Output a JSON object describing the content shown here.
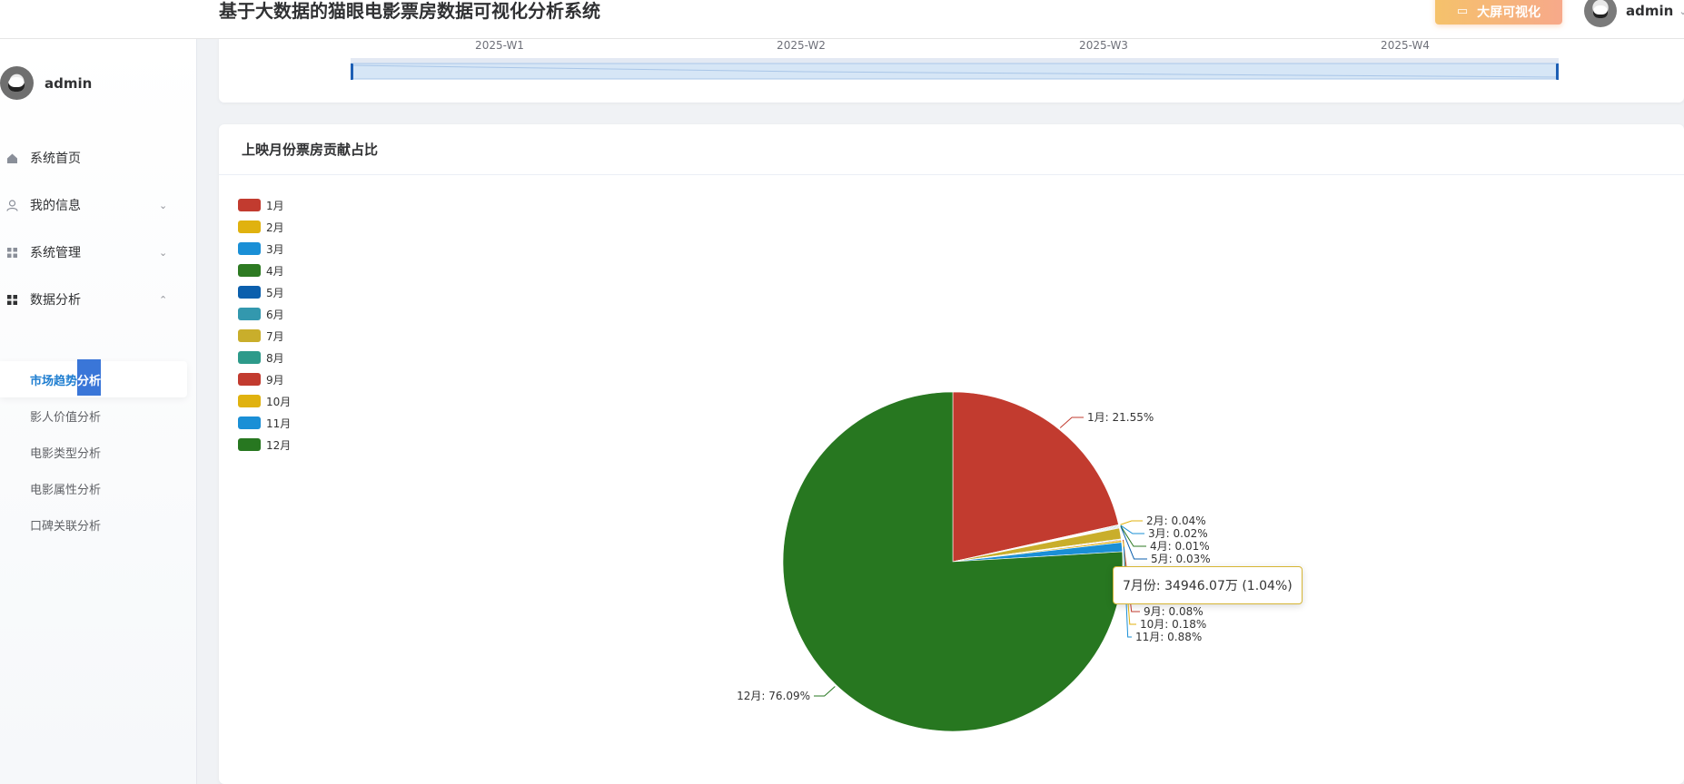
{
  "app": {
    "title": "基于大数据的猫眼电影票房数据可视化分析系统",
    "bigscreen_label": "大屏可视化",
    "user_name": "admin"
  },
  "sidebar": {
    "user_name": "admin",
    "menu": [
      {
        "label": "系统首页",
        "icon": "home-icon"
      },
      {
        "label": "我的信息",
        "icon": "user-icon",
        "arrow": "chevron-down-icon"
      },
      {
        "label": "系统管理",
        "icon": "grid-icon",
        "arrow": "chevron-down-icon"
      },
      {
        "label": "数据分析",
        "icon": "grid-filled-icon",
        "arrow": "chevron-up-icon"
      }
    ],
    "submenu": [
      {
        "label": "市场趋势分析",
        "active": true
      },
      {
        "label": "影人价值分析"
      },
      {
        "label": "电影类型分析"
      },
      {
        "label": "电影属性分析"
      },
      {
        "label": "口碑关联分析"
      }
    ],
    "selection_text": "分析"
  },
  "top_card": {
    "weeks": [
      "2025-W1",
      "2025-W2",
      "2025-W3",
      "2025-W4"
    ]
  },
  "pie_card": {
    "title": "上映月份票房贡献占比",
    "tooltip": "7月份: 34946.07万 (1.04%)"
  },
  "colors": {
    "accent": "#1f7ed0",
    "selection": "#2f6fd6"
  },
  "chart_data": {
    "type": "pie",
    "title": "上映月份票房贡献占比",
    "categories": [
      "1月",
      "2月",
      "3月",
      "4月",
      "5月",
      "6月",
      "7月",
      "8月",
      "9月",
      "10月",
      "11月",
      "12月"
    ],
    "values": [
      21.55,
      0.04,
      0.02,
      0.01,
      0.03,
      0.05,
      1.04,
      0.02,
      0.08,
      0.18,
      0.88,
      76.09
    ],
    "colors": [
      "#c23b2f",
      "#e0b20f",
      "#1a8fd6",
      "#2d7a22",
      "#0b5fad",
      "#3398ae",
      "#c9ae2b",
      "#2d9a8a",
      "#c23b2f",
      "#e0b20f",
      "#1a8fd6",
      "#277720"
    ],
    "visible_labels": [
      "1月: 21.55%",
      "2月: 0.04%",
      "3月: 0.02%",
      "4月: 0.01%",
      "5月: 0.03%",
      "9月: 0.08%",
      "10月: 0.18%",
      "11月: 0.88%",
      "12月: 76.09%"
    ],
    "legend_position": "top-left",
    "tooltip_label": "7月份: 34946.07万 (1.04%)"
  }
}
